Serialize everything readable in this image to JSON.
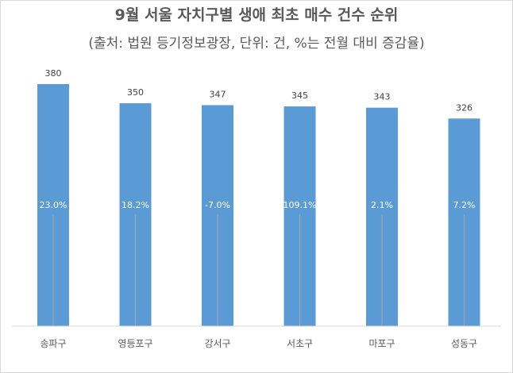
{
  "chart_data": {
    "type": "bar",
    "title": "9월 서울 자치구별 생애 최초 매수 건수 순위",
    "subtitle": "(출처: 법원 등기정보광장, 단위: 건, %는 전월 대비 증감율)",
    "categories": [
      "송파구",
      "영등포구",
      "강서구",
      "서초구",
      "마포구",
      "성동구"
    ],
    "series": [
      {
        "values": [
          380,
          350,
          347,
          345,
          343,
          326
        ]
      }
    ],
    "change_labels": [
      "23.0%",
      "18.2%",
      "-7.0%",
      "109.1%",
      "2.1%",
      "7.2%"
    ],
    "ylim": [
      0,
      380
    ],
    "grid": false,
    "bar_color": "#5b9bd5"
  }
}
